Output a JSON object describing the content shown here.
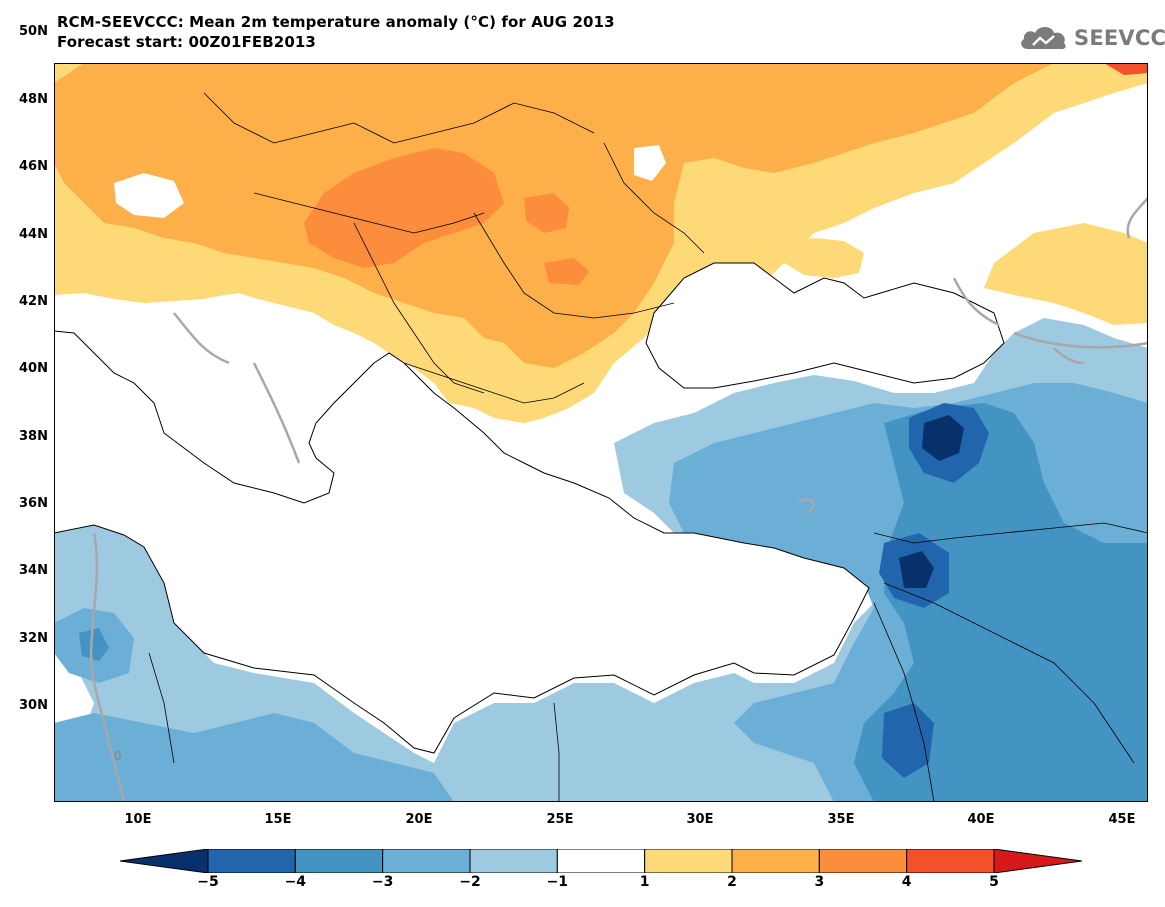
{
  "header": {
    "title_line1": "RCM-SEEVCCC: Mean 2m temperature anomaly (°C) for AUG 2013",
    "title_line2": "Forecast start: 00Z01FEB2013",
    "logo_text": "SEEVCCC"
  },
  "map": {
    "projection": "lat-lon",
    "region": "Southeast Europe, Mediterranean, Middle East",
    "lon_range": [
      7,
      46
    ],
    "lat_range": [
      29,
      51
    ],
    "x_ticks": [
      "10E",
      "15E",
      "20E",
      "25E",
      "30E",
      "35E",
      "40E",
      "45E"
    ],
    "y_ticks": [
      "50N",
      "48N",
      "46N",
      "44N",
      "42N",
      "40N",
      "38N",
      "36N",
      "34N",
      "32N",
      "30N"
    ],
    "zero_contour_label": "0",
    "land_color_neutral": "#ffffff",
    "sea_color": "#ffffff"
  },
  "colorbar": {
    "labels": [
      "-5",
      "-4",
      "-3",
      "-2",
      "-1",
      "1",
      "2",
      "3",
      "4",
      "5"
    ],
    "colors": [
      "#08306b",
      "#2166ac",
      "#4393c3",
      "#6baed6",
      "#9ecae1",
      "#ffffff",
      "#fdd978",
      "#fdaf4a",
      "#fc8d3c",
      "#f4502a",
      "#d7191c"
    ]
  }
}
